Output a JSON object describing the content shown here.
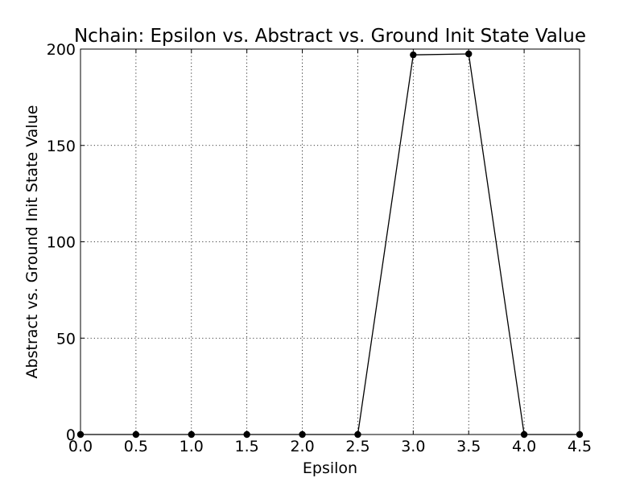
{
  "chart_data": {
    "type": "line",
    "title": "Nchain: Epsilon vs. Abstract vs. Ground Init State Value",
    "xlabel": "Epsilon",
    "ylabel": "Abstract vs. Ground Init State Value",
    "xlim": [
      0,
      4.5
    ],
    "ylim": [
      0,
      200
    ],
    "x_ticks": [
      "0.0",
      "0.5",
      "1.0",
      "1.5",
      "2.0",
      "2.5",
      "3.0",
      "3.5",
      "4.0",
      "4.5"
    ],
    "y_ticks": [
      "0",
      "50",
      "100",
      "150",
      "200"
    ],
    "grid": true,
    "series": [
      {
        "color": "#000000",
        "marker": "circle",
        "x": [
          0.0,
          0.5,
          1.0,
          1.5,
          2.0,
          2.5,
          3.0,
          3.5,
          4.0,
          4.5
        ],
        "y": [
          0,
          0,
          0,
          0,
          0,
          0,
          197,
          197.5,
          0,
          0
        ]
      }
    ]
  }
}
